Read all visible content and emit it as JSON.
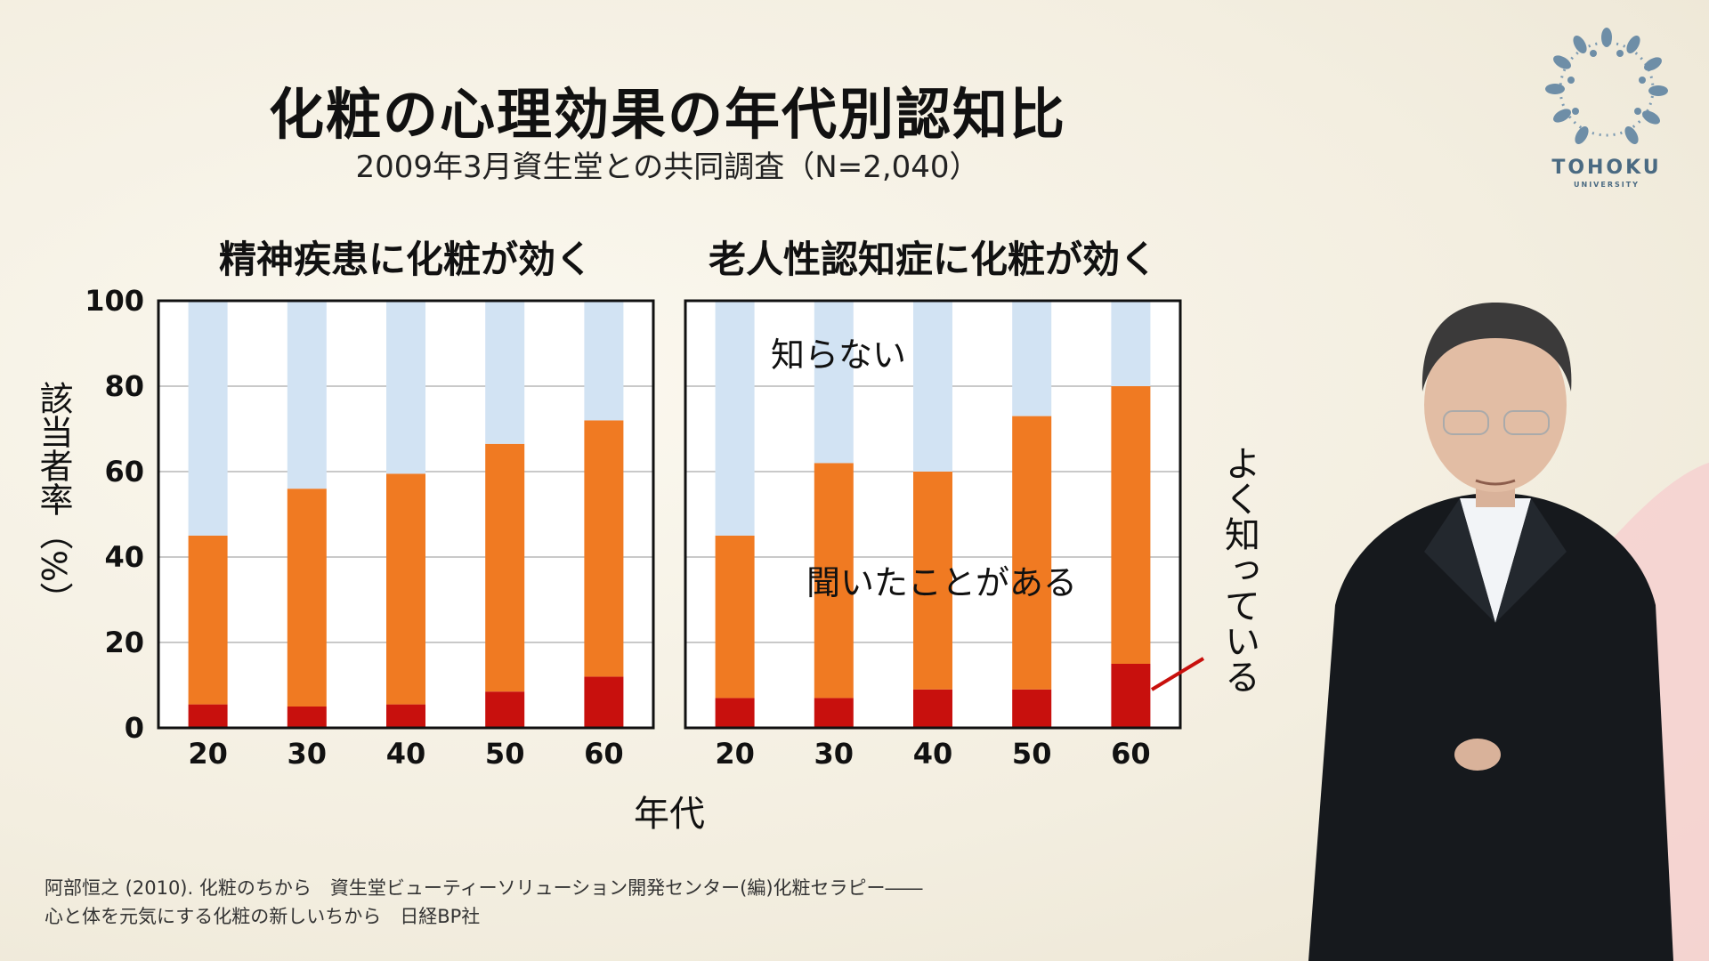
{
  "title": "化粧の心理効果の年代別認知比",
  "subtitle": "2009年3月資生堂との共同調査（N=2,040）",
  "logo": {
    "name": "TOHOKU",
    "sub": "UNIVERSITY"
  },
  "citation": {
    "line1": "阿部恒之 (2010). 化粧のちから　資生堂ビューティーソリューション開発センター(編)化粧セラピー――",
    "line2": "心と体を元気にする化粧の新しいちから　日経BP社"
  },
  "chart_data": [
    {
      "type": "bar",
      "stacked": true,
      "title": "精神疾患に化粧が効く",
      "categories": [
        "20",
        "30",
        "40",
        "50",
        "60"
      ],
      "xlabel": "年代",
      "ylabel": "該当者率（%）",
      "ylim": [
        0,
        100
      ],
      "yticks": [
        "0",
        "20",
        "40",
        "60",
        "80",
        "100"
      ],
      "grid": true,
      "series": [
        {
          "name": "よく知っている",
          "values": [
            5.5,
            5,
            5.5,
            8.5,
            12
          ],
          "color": "#c8100d"
        },
        {
          "name": "聞いたことがある",
          "values": [
            39.5,
            51,
            54,
            58,
            60
          ],
          "color": "#f07a22"
        },
        {
          "name": "知らない",
          "values": [
            55,
            44,
            40.5,
            33.5,
            28
          ],
          "color": "#d2e3f3"
        }
      ]
    },
    {
      "type": "bar",
      "stacked": true,
      "title": "老人性認知症に化粧が効く",
      "categories": [
        "20",
        "30",
        "40",
        "50",
        "60"
      ],
      "xlabel": "年代",
      "ylabel": "該当者率（%）",
      "ylim": [
        0,
        100
      ],
      "grid": true,
      "series": [
        {
          "name": "よく知っている",
          "values": [
            7,
            7,
            9,
            9,
            15
          ],
          "color": "#c8100d"
        },
        {
          "name": "聞いたことがある",
          "values": [
            38,
            55,
            51,
            64,
            65
          ],
          "color": "#f07a22"
        },
        {
          "name": "知らない",
          "values": [
            55,
            38,
            40,
            27,
            20
          ],
          "color": "#d2e3f3"
        }
      ],
      "annotations": [
        "知らない",
        "聞いたことがある",
        "よく知っている"
      ]
    }
  ]
}
